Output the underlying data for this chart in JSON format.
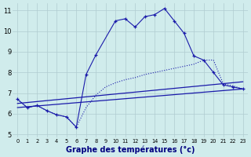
{
  "bg_color": "#d0ecec",
  "grid_color": "#b0ccd0",
  "line_color": "#1a1aaa",
  "xlabel": "Graphe des températures (°c)",
  "xlim": [
    -0.5,
    23.5
  ],
  "ylim": [
    4.85,
    11.35
  ],
  "xticks": [
    0,
    1,
    2,
    3,
    4,
    5,
    6,
    7,
    8,
    9,
    10,
    11,
    12,
    13,
    14,
    15,
    16,
    17,
    18,
    19,
    20,
    21,
    22,
    23
  ],
  "yticks": [
    5,
    6,
    7,
    8,
    9,
    10,
    11
  ],
  "curve_dotted_x": [
    0,
    1,
    2,
    3,
    4,
    5,
    6,
    7,
    8,
    9,
    10,
    11,
    12,
    13,
    14,
    15,
    16,
    17,
    18,
    19,
    20,
    21,
    22,
    23
  ],
  "curve_dotted_y": [
    6.7,
    6.3,
    6.4,
    6.15,
    5.95,
    5.85,
    5.35,
    6.3,
    6.9,
    7.3,
    7.5,
    7.65,
    7.75,
    7.9,
    8.0,
    8.1,
    8.2,
    8.3,
    8.4,
    8.6,
    8.6,
    7.45,
    7.35,
    7.2
  ],
  "curve_marker_x": [
    0,
    1,
    2,
    3,
    4,
    5,
    6,
    7,
    8,
    10,
    11,
    12,
    13,
    14,
    15,
    16,
    17,
    18,
    19,
    20,
    21,
    22,
    23
  ],
  "curve_marker_y": [
    6.7,
    6.3,
    6.4,
    6.15,
    5.95,
    5.85,
    5.35,
    7.9,
    8.85,
    10.5,
    10.6,
    10.2,
    10.7,
    10.8,
    11.1,
    10.5,
    9.9,
    8.8,
    8.6,
    8.0,
    7.4,
    7.3,
    7.2
  ],
  "line1_x": [
    0,
    23
  ],
  "line1_y": [
    6.5,
    7.55
  ],
  "line2_x": [
    0,
    23
  ],
  "line2_y": [
    6.3,
    7.2
  ]
}
